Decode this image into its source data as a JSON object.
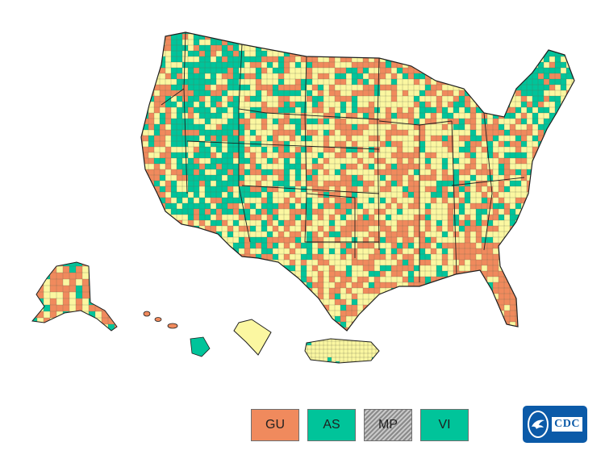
{
  "colors": {
    "high": "#f08a5d",
    "medium": "#7ad3b6",
    "teal": "#00c49a",
    "low": "#fbf7a1",
    "no_data_hatch": "#8a8a8a",
    "border": "#1f1f1f",
    "cdc_blue": "#0b5aa8"
  },
  "territories": [
    {
      "code": "GU",
      "level": "high"
    },
    {
      "code": "AS",
      "level": "teal"
    },
    {
      "code": "MP",
      "level": "no_data"
    },
    {
      "code": "VI",
      "level": "teal"
    }
  ],
  "logo": {
    "text": "CDC",
    "icon": "hhs-eagle-icon"
  },
  "map": {
    "regions_shown": [
      "contiguous-us",
      "alaska",
      "hawaii",
      "puerto-rico"
    ]
  }
}
